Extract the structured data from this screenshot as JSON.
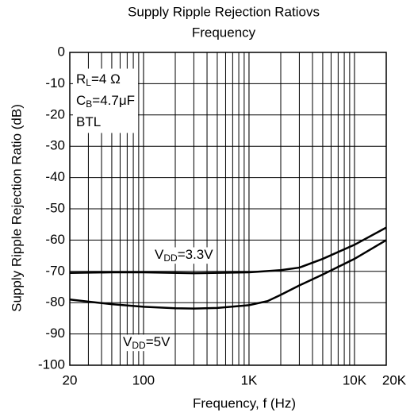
{
  "chart_data": {
    "type": "line",
    "title": [
      "Supply Ripple Rejection Ratiovs",
      "Frequency"
    ],
    "xlabel": "Frequency, f (Hz)",
    "ylabel": "Supply Ripple Rejection Ratio (dB)",
    "xscale": "log",
    "xlim": [
      20,
      20000
    ],
    "xticks": [
      20,
      100,
      {
        "value": 1000,
        "label": "1K"
      },
      {
        "value": 10000,
        "label": "10K"
      },
      {
        "value": 20000,
        "label": "20K"
      }
    ],
    "ylim": [
      -100,
      0
    ],
    "yticks": [
      0,
      -10,
      -20,
      -30,
      -40,
      -50,
      -60,
      -70,
      -80,
      -90,
      -100
    ],
    "grid": true,
    "annotations": [
      [
        "R",
        "L",
        "=4 Ω"
      ],
      [
        "C",
        "B",
        "=4.7μF"
      ],
      [
        "BTL",
        "",
        ""
      ]
    ],
    "series": [
      {
        "name": [
          "V",
          "DD",
          "=3.3V"
        ],
        "color": "#000000",
        "x": [
          20,
          50,
          100,
          300,
          1000,
          2000,
          3000,
          5000,
          10000,
          20000
        ],
        "values": [
          -70.5,
          -70.3,
          -70.3,
          -70.6,
          -70.3,
          -69.6,
          -68.8,
          -66,
          -61.5,
          -56
        ]
      },
      {
        "name": [
          "V",
          "DD",
          "=5V"
        ],
        "color": "#000000",
        "x": [
          20,
          50,
          100,
          200,
          300,
          500,
          1000,
          1500,
          2000,
          3000,
          5000,
          10000,
          20000
        ],
        "values": [
          -79,
          -80.5,
          -81.3,
          -81.8,
          -81.9,
          -81.7,
          -80.8,
          -79.5,
          -77.5,
          -74.5,
          -71,
          -66,
          -60
        ]
      }
    ]
  }
}
